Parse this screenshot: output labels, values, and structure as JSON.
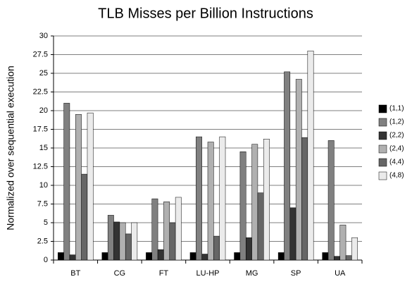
{
  "chart_data": {
    "type": "bar",
    "title": "TLB Misses per Billion Instructions",
    "y_label": "Normalized over sequential execution",
    "categories": [
      "BT",
      "CG",
      "FT",
      "LU-HP",
      "MG",
      "SP",
      "UA"
    ],
    "series": [
      {
        "name": "(1,1)",
        "color": "#000000",
        "values": [
          1,
          1,
          1,
          1,
          1,
          1,
          1
        ]
      },
      {
        "name": "(1,2)",
        "color": "#808080",
        "values": [
          21,
          6,
          8.2,
          16.5,
          14.5,
          25.2,
          16
        ]
      },
      {
        "name": "(2,2)",
        "color": "#333333",
        "values": [
          0.7,
          5.1,
          1.4,
          0.8,
          3,
          7,
          0.5
        ]
      },
      {
        "name": "(2,4)",
        "color": "#b0b0b0",
        "values": [
          19.5,
          5,
          7.8,
          15.8,
          15.5,
          24.2,
          4.7
        ]
      },
      {
        "name": "(4,4)",
        "color": "#666666",
        "values": [
          11.5,
          3.5,
          5,
          3.2,
          9,
          16.4,
          0.6
        ]
      },
      {
        "name": "(4,8)",
        "color": "#ebebeb",
        "values": [
          19.7,
          5,
          8.4,
          16.5,
          16.2,
          28,
          3
        ]
      }
    ],
    "ylim": [
      0,
      30
    ],
    "yticks": [
      0,
      2.5,
      5,
      7.5,
      10,
      12.5,
      15,
      17.5,
      20,
      22.5,
      25,
      27.5,
      30
    ],
    "grid": true
  }
}
